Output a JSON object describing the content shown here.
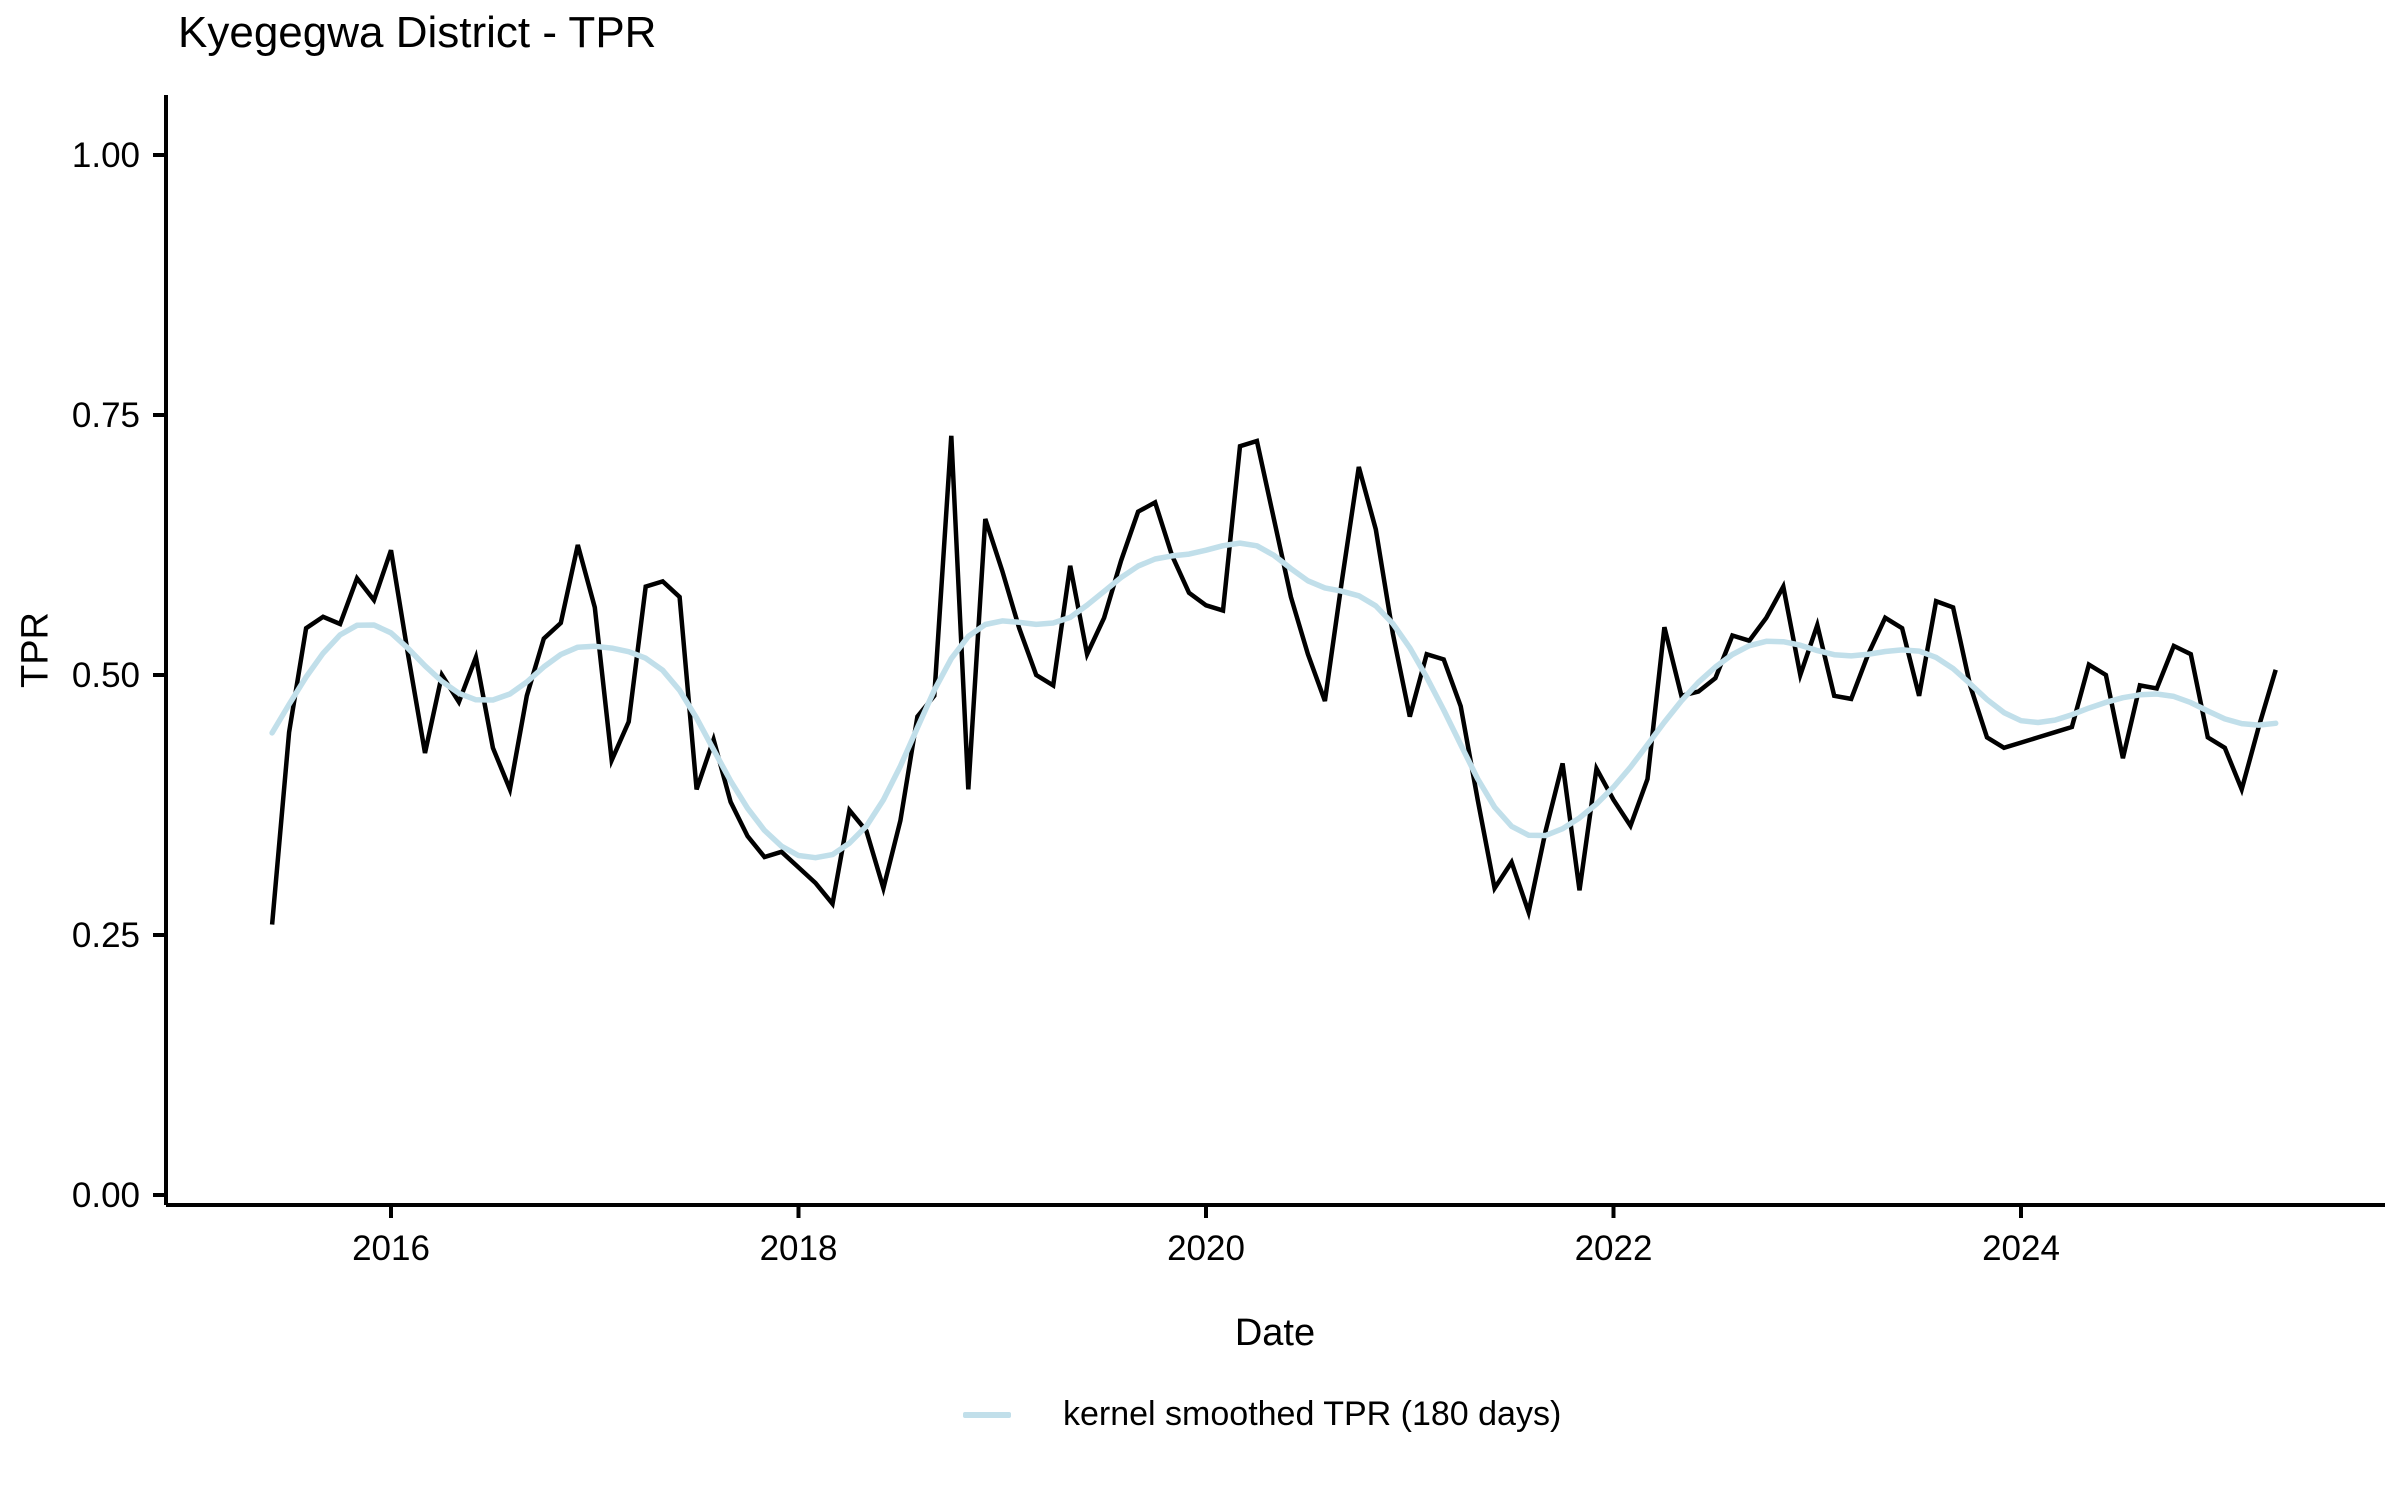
{
  "title": "Kyegegwa District - TPR",
  "chart_data": {
    "type": "line",
    "title": "Kyegegwa District - TPR",
    "xlabel": "Date",
    "ylabel": "TPR",
    "ylim": [
      0.0,
      1.05
    ],
    "yticks": [
      0.0,
      0.25,
      0.5,
      0.75,
      1.0
    ],
    "ytick_labels": [
      "0.00",
      "0.25",
      "0.50",
      "0.75",
      "1.00"
    ],
    "xtick_years": [
      2016,
      2018,
      2020,
      2022,
      2024
    ],
    "grid": false,
    "legend_position": "bottom",
    "x_start_date": "2015-06",
    "x_end_date": "2025-04",
    "frequency": "monthly",
    "series": [
      {
        "name": "TPR",
        "color": "#000000",
        "values": [
          0.26,
          0.445,
          0.545,
          0.556,
          0.549,
          0.593,
          0.572,
          0.62,
          0.52,
          0.425,
          0.5,
          0.474,
          0.517,
          0.43,
          0.39,
          0.48,
          0.535,
          0.55,
          0.625,
          0.565,
          0.418,
          0.455,
          0.585,
          0.59,
          0.575,
          0.39,
          0.438,
          0.378,
          0.345,
          0.325,
          0.33,
          0.315,
          0.3,
          0.28,
          0.37,
          0.35,
          0.295,
          0.36,
          0.46,
          0.48,
          0.73,
          0.39,
          0.65,
          0.6,
          0.545,
          0.5,
          0.49,
          0.605,
          0.52,
          0.555,
          0.61,
          0.657,
          0.666,
          0.615,
          0.579,
          0.567,
          0.562,
          0.72,
          0.725,
          0.65,
          0.575,
          0.52,
          0.475,
          0.59,
          0.7,
          0.64,
          0.54,
          0.46,
          0.52,
          0.515,
          0.47,
          0.38,
          0.295,
          0.32,
          0.272,
          0.35,
          0.415,
          0.293,
          0.41,
          0.38,
          0.355,
          0.4,
          0.546,
          0.48,
          0.484,
          0.497,
          0.538,
          0.533,
          0.555,
          0.585,
          0.5,
          0.548,
          0.48,
          0.477,
          0.52,
          0.555,
          0.545,
          0.48,
          0.571,
          0.565,
          0.49,
          0.44,
          0.43,
          0.435,
          0.44,
          0.445,
          0.45,
          0.51,
          0.5,
          0.42,
          0.49,
          0.487,
          0.528,
          0.52,
          0.44,
          0.43,
          0.39,
          0.45,
          0.505
        ]
      },
      {
        "name": "kernel smoothed TPR (180 days)",
        "color": "#C1DFEA",
        "derived_from": "TPR",
        "method": "gaussian kernel smoothing",
        "bandwidth_days": 180
      }
    ]
  },
  "legend": {
    "label": "kernel smoothed TPR (180 days)",
    "swatch_color": "#C1DFEA"
  },
  "axis": {
    "color": "#000000",
    "tick_length": 13
  }
}
